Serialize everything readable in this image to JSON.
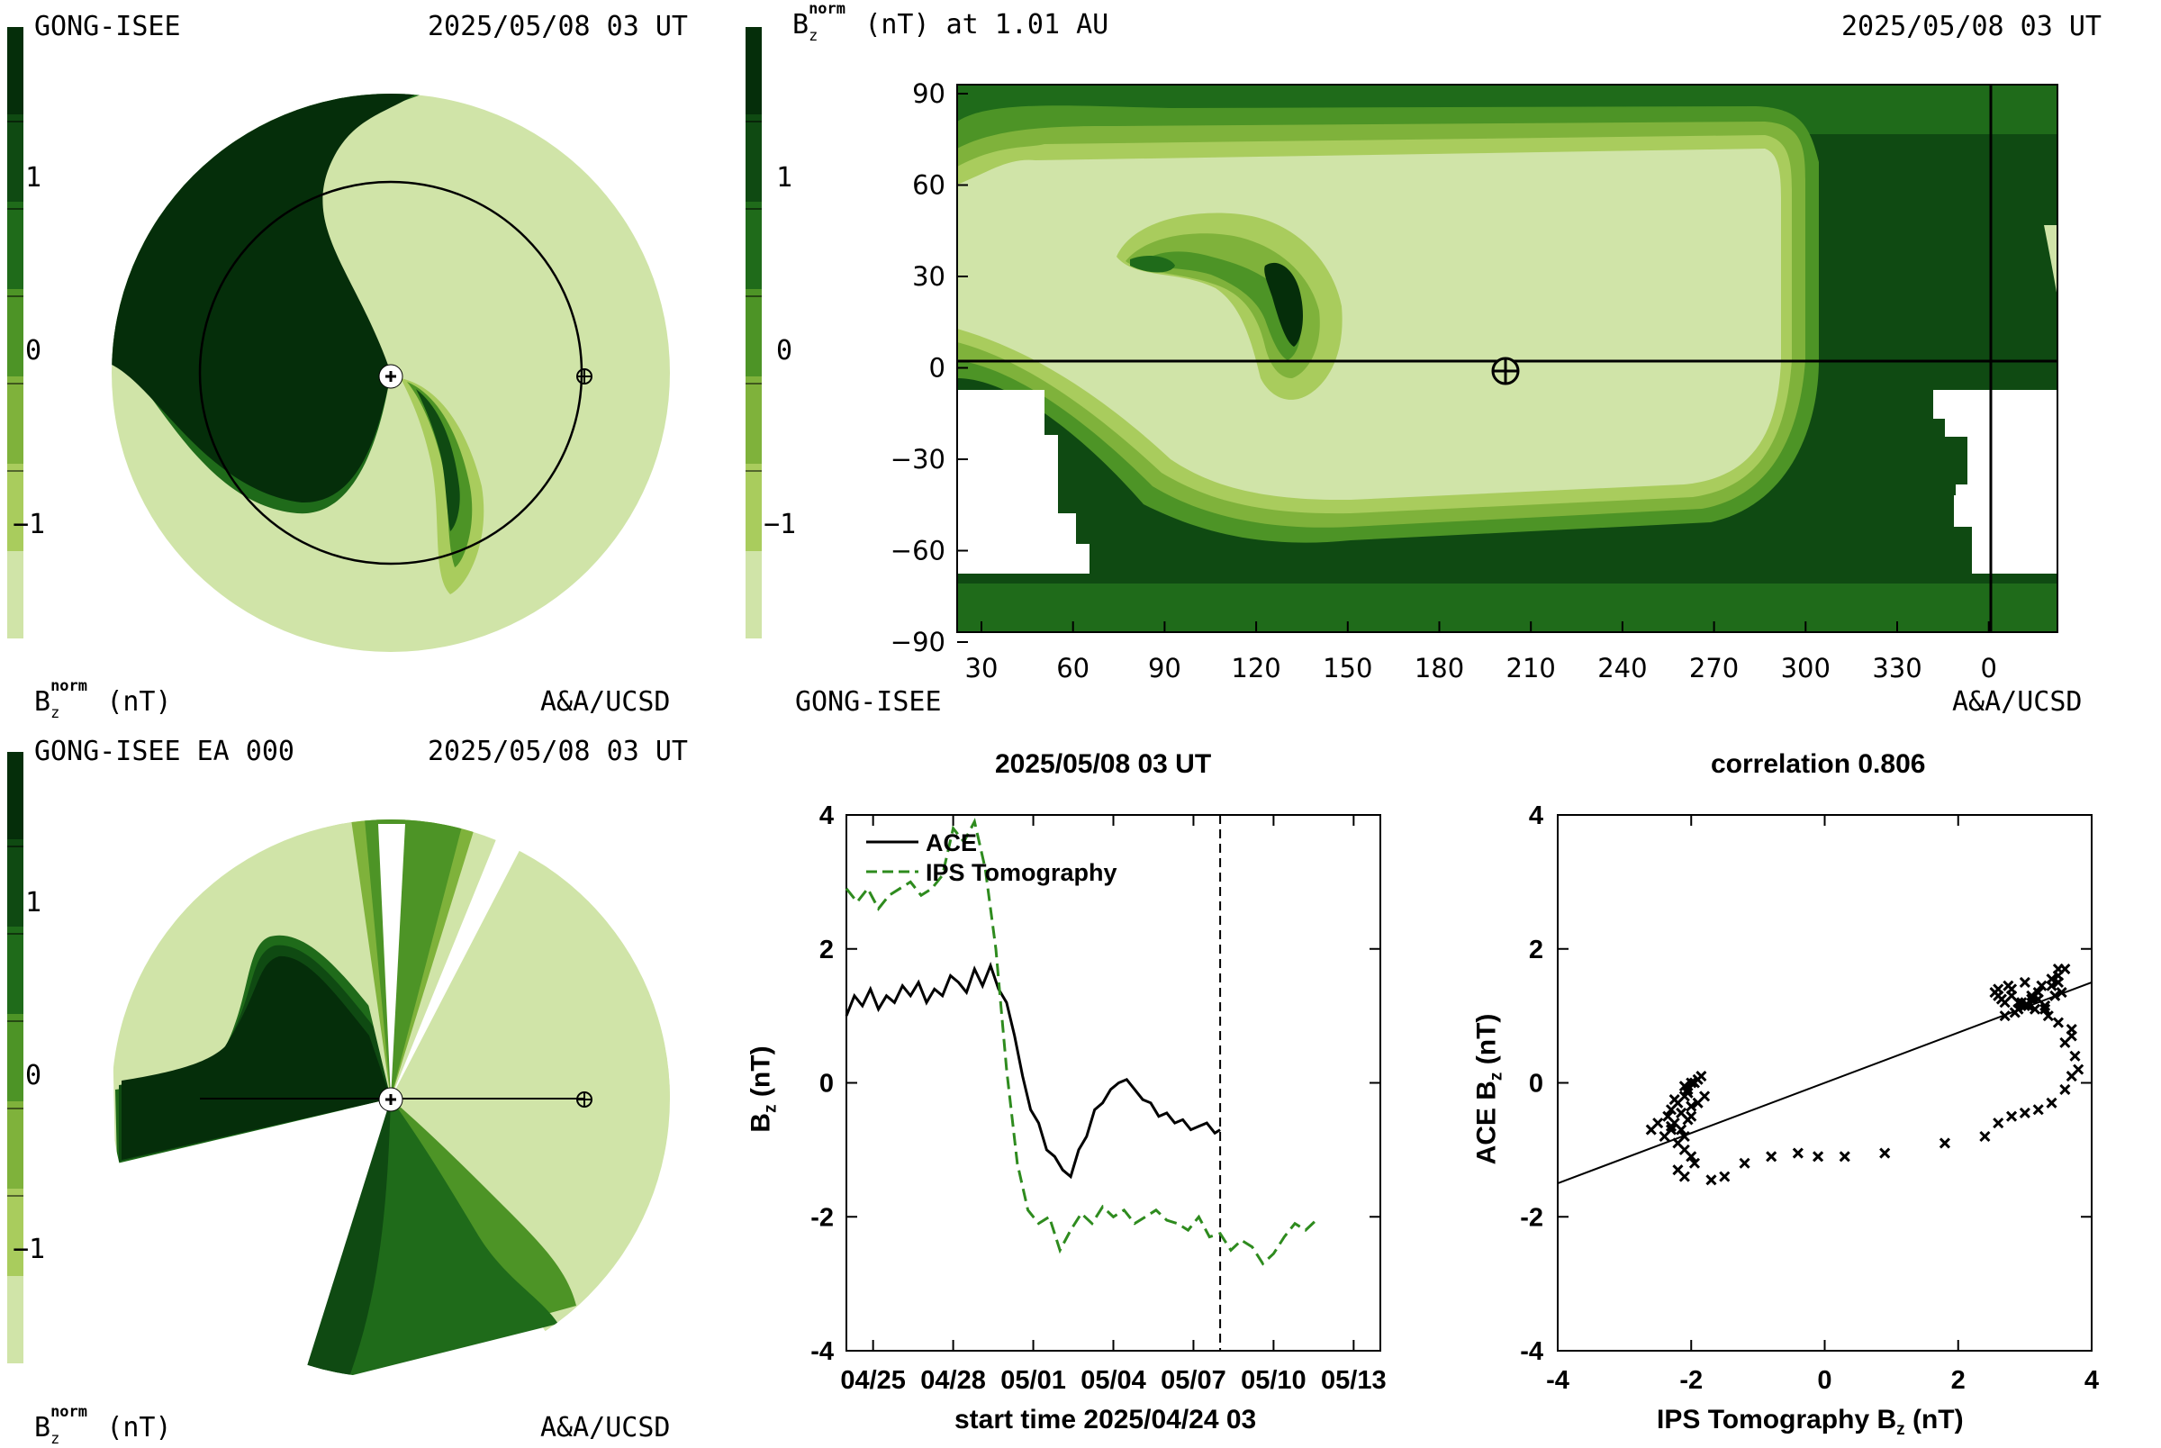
{
  "palette": [
    "#d0e4a8",
    "#a9cc5d",
    "#7fb23b",
    "#4d9426",
    "#1f6b1a",
    "#0f4a12",
    "#052e0a"
  ],
  "top_left": {
    "source": "GONG-ISEE",
    "timestamp": "2025/05/08 03 UT",
    "colorbar_label": "B",
    "colorbar_sub": "z",
    "colorbar_sup": "norm",
    "colorbar_unit": "(nT)",
    "credit": "A&A/UCSD",
    "ticks": [
      "1",
      "0",
      "−1"
    ]
  },
  "top_right": {
    "title_sym": "B",
    "title_sub": "z",
    "title_sup": "norm",
    "title_rest": "(nT) at 1.01 AU",
    "timestamp": "2025/05/08 03 UT",
    "source": "GONG-ISEE",
    "credit": "A&A/UCSD",
    "colorbar_ticks": [
      "1",
      "0",
      "−1"
    ],
    "y_ticks": [
      "90",
      "60",
      "30",
      "0",
      "−30",
      "−60",
      "−90"
    ],
    "x_ticks": [
      "30",
      "60",
      "90",
      "120",
      "150",
      "180",
      "210",
      "240",
      "270",
      "300",
      "330",
      "0"
    ]
  },
  "bottom_left": {
    "source": "GONG-ISEE EA 000",
    "timestamp": "2025/05/08 03 UT",
    "colorbar_label": "B",
    "colorbar_sub": "z",
    "colorbar_sup": "norm",
    "colorbar_unit": "(nT)",
    "credit": "A&A/UCSD",
    "ticks": [
      "1",
      "0",
      "−1"
    ]
  },
  "chart_data": [
    {
      "type": "line",
      "title": "2025/05/08 03 UT",
      "xlabel": "start time 2025/04/24 03",
      "ylabel": "B",
      "ylabel_sub": "z",
      "ylabel_unit": "(nT)",
      "x_tick_labels": [
        "04/25",
        "04/28",
        "05/01",
        "05/04",
        "05/07",
        "05/10",
        "05/13"
      ],
      "x_tick_days": [
        1,
        4,
        7,
        10,
        13,
        16,
        19
      ],
      "y_ticks": [
        4,
        2,
        0,
        -2,
        -4
      ],
      "xlim": [
        0,
        20
      ],
      "ylim": [
        -4,
        4
      ],
      "marker_day": 14,
      "legend_position": "top-left",
      "series": [
        {
          "name": "ACE",
          "style": "solid",
          "color": "#000000",
          "x": [
            0,
            0.3,
            0.6,
            0.9,
            1.2,
            1.5,
            1.8,
            2.1,
            2.4,
            2.7,
            3,
            3.3,
            3.6,
            3.9,
            4.2,
            4.5,
            4.8,
            5.1,
            5.4,
            5.7,
            6,
            6.3,
            6.6,
            6.9,
            7.2,
            7.5,
            7.8,
            8.1,
            8.4,
            8.7,
            9,
            9.3,
            9.6,
            9.9,
            10.2,
            10.5,
            10.8,
            11.1,
            11.4,
            11.7,
            12,
            12.3,
            12.6,
            12.9,
            13.2,
            13.5,
            13.8,
            14
          ],
          "y": [
            1.0,
            1.3,
            1.15,
            1.4,
            1.1,
            1.3,
            1.2,
            1.45,
            1.3,
            1.5,
            1.2,
            1.4,
            1.3,
            1.6,
            1.5,
            1.35,
            1.7,
            1.45,
            1.75,
            1.4,
            1.2,
            0.7,
            0.1,
            -0.4,
            -0.6,
            -1.0,
            -1.1,
            -1.3,
            -1.4,
            -1.0,
            -0.8,
            -0.4,
            -0.3,
            -0.1,
            0.0,
            0.05,
            -0.1,
            -0.25,
            -0.3,
            -0.5,
            -0.45,
            -0.6,
            -0.55,
            -0.7,
            -0.65,
            -0.6,
            -0.75,
            -0.7
          ]
        },
        {
          "name": "IPS Tomography",
          "style": "dashed",
          "color": "#2e8b1e",
          "x": [
            0,
            0.4,
            0.8,
            1.2,
            1.6,
            2,
            2.4,
            2.8,
            3.2,
            3.6,
            4,
            4.4,
            4.8,
            5.2,
            5.6,
            6,
            6.4,
            6.8,
            7.2,
            7.6,
            8,
            8.4,
            8.8,
            9.2,
            9.6,
            10,
            10.4,
            10.8,
            11.2,
            11.6,
            12,
            12.4,
            12.8,
            13.2,
            13.6,
            14,
            14.4,
            14.8,
            15.2,
            15.6,
            16,
            16.4,
            16.8,
            17.2,
            17.6
          ],
          "y": [
            2.9,
            2.7,
            2.9,
            2.6,
            2.8,
            2.9,
            3.0,
            2.8,
            2.9,
            3.1,
            3.8,
            3.6,
            3.9,
            3.2,
            2.0,
            0.2,
            -1.2,
            -1.9,
            -2.1,
            -2.0,
            -2.5,
            -2.2,
            -1.95,
            -2.1,
            -1.85,
            -2.0,
            -1.9,
            -2.1,
            -2.0,
            -1.9,
            -2.05,
            -2.1,
            -2.2,
            -2.0,
            -2.3,
            -2.25,
            -2.5,
            -2.35,
            -2.45,
            -2.7,
            -2.55,
            -2.3,
            -2.1,
            -2.2,
            -2.05
          ]
        }
      ]
    },
    {
      "type": "scatter",
      "title": "correlation 0.806",
      "xlabel": "IPS Tomography B",
      "xlabel_sub": "z",
      "xlabel_unit": "(nT)",
      "ylabel": "ACE B",
      "ylabel_sub": "z",
      "ylabel_unit": "(nT)",
      "xlim": [
        -4,
        4
      ],
      "ylim": [
        -4,
        4
      ],
      "x_ticks": [
        -4,
        -2,
        0,
        2,
        4
      ],
      "y_ticks": [
        4,
        2,
        0,
        -2,
        -4
      ],
      "fit_line": {
        "x": [
          -4,
          4
        ],
        "y": [
          -1.5,
          1.5
        ]
      },
      "x": [
        -2.6,
        -2.5,
        -2.4,
        -2.35,
        -2.3,
        -2.25,
        -2.2,
        -2.15,
        -2.1,
        -2.05,
        -2.0,
        -1.95,
        -1.9,
        -1.85,
        -2.2,
        -2.1,
        -2.3,
        -2.0,
        -2.15,
        -1.8,
        -2.05,
        -2.25,
        -2.1,
        -2.0,
        -1.95,
        -2.3,
        -2.2,
        -2.05,
        -2.1,
        -2.0,
        -1.9,
        -2.1,
        -1.7,
        -1.5,
        -1.2,
        -0.8,
        -0.4,
        -0.1,
        0.3,
        0.9,
        1.8,
        2.4,
        2.6,
        2.8,
        3.0,
        3.2,
        3.4,
        3.6,
        3.7,
        2.6,
        2.7,
        2.8,
        2.9,
        3.0,
        3.1,
        3.2,
        3.3,
        3.4,
        3.5,
        3.6,
        2.7,
        2.9,
        3.1,
        3.3,
        3.5,
        2.8,
        3.0,
        3.2,
        3.4,
        2.6,
        3.5,
        3.6,
        3.7,
        3.75,
        3.8,
        3.7,
        3.5,
        2.55,
        2.75,
        2.95,
        3.15,
        3.35,
        3.55,
        2.65,
        2.85,
        3.05,
        3.25,
        3.45
      ],
      "y": [
        -0.7,
        -0.6,
        -0.8,
        -0.5,
        -0.4,
        -0.6,
        -0.3,
        -0.7,
        -0.2,
        -0.1,
        -0.5,
        0.0,
        0.05,
        0.1,
        -0.9,
        -0.8,
        -0.65,
        -0.35,
        -0.45,
        -0.2,
        -0.55,
        -0.25,
        -1.0,
        -1.1,
        -1.2,
        -0.7,
        -1.3,
        -0.15,
        -0.05,
        0.0,
        -0.3,
        -1.4,
        -1.45,
        -1.4,
        -1.2,
        -1.1,
        -1.05,
        -1.1,
        -1.1,
        -1.05,
        -0.9,
        -0.8,
        -0.6,
        -0.5,
        -0.45,
        -0.4,
        -0.3,
        -0.1,
        0.1,
        1.4,
        1.2,
        1.3,
        1.1,
        1.5,
        1.25,
        1.35,
        1.15,
        1.45,
        1.6,
        1.7,
        1.0,
        1.2,
        1.3,
        1.1,
        1.5,
        1.4,
        1.15,
        1.25,
        1.55,
        1.3,
        0.9,
        0.6,
        0.7,
        0.4,
        0.2,
        0.8,
        1.7,
        1.35,
        1.45,
        1.2,
        1.1,
        1.0,
        1.35,
        1.25,
        1.05,
        1.15,
        1.45,
        1.3
      ]
    }
  ]
}
